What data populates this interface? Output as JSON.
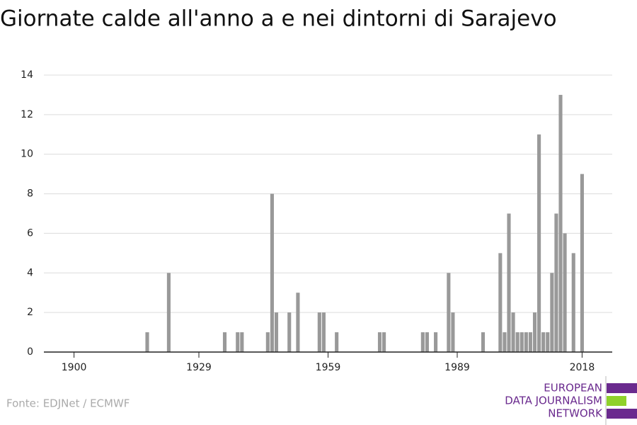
{
  "chart_data": {
    "type": "bar",
    "title": "Giornate calde all'anno a e nei dintorni di Sarajevo",
    "x": [
      1917,
      1922,
      1935,
      1938,
      1939,
      1945,
      1946,
      1947,
      1950,
      1952,
      1957,
      1958,
      1961,
      1971,
      1972,
      1981,
      1982,
      1984,
      1987,
      1988,
      1995,
      1999,
      2000,
      2001,
      2002,
      2003,
      2004,
      2005,
      2006,
      2007,
      2008,
      2009,
      2010,
      2011,
      2012,
      2013,
      2014,
      2016,
      2018
    ],
    "values": [
      1,
      4,
      1,
      1,
      1,
      1,
      8,
      2,
      2,
      3,
      2,
      2,
      1,
      1,
      1,
      1,
      1,
      1,
      4,
      2,
      1,
      5,
      1,
      7,
      2,
      1,
      1,
      1,
      1,
      2,
      11,
      1,
      1,
      4,
      7,
      13,
      6,
      5,
      9
    ],
    "color": "#999999",
    "xlim": [
      1893,
      2025
    ],
    "xticks": [
      1900,
      1929,
      1959,
      1989,
      2018
    ],
    "ylim": [
      0,
      14
    ],
    "yticks": [
      0,
      2,
      4,
      6,
      8,
      10,
      12,
      14
    ],
    "grid": true
  },
  "footer": {
    "source": "Fonte: EDJNet / ECMWF",
    "logo": [
      "EUROPEAN",
      "DATA JOURNALISM",
      "NETWORK"
    ]
  }
}
